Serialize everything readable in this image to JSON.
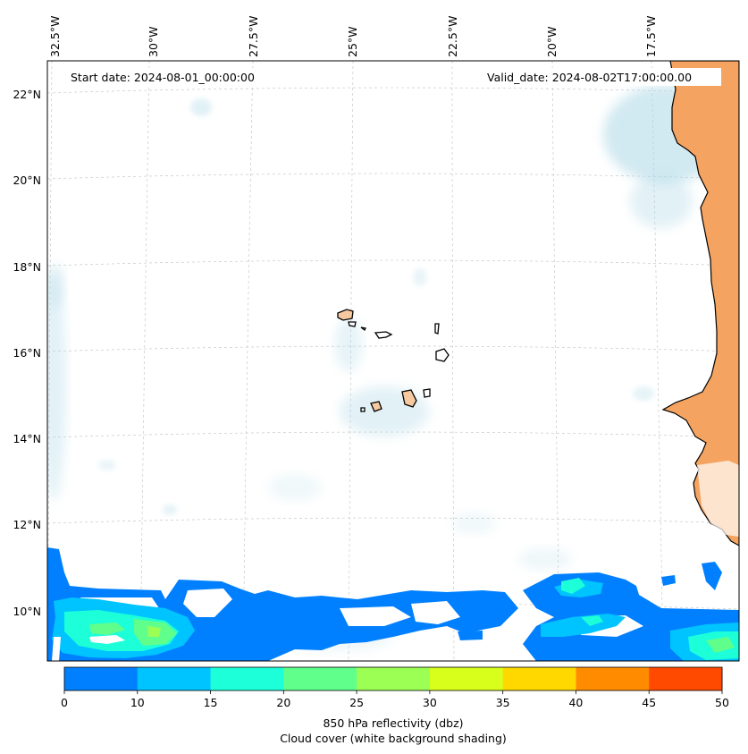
{
  "map": {
    "start_date": "Start date: 2024-08-01_00:00:00",
    "valid_date": "Valid_date: 2024-08-02T17:00:00.00",
    "lon_labels": [
      "32.5°W",
      "30°W",
      "27.5°W",
      "25°W",
      "22.5°W",
      "20°W",
      "17.5°W"
    ],
    "lat_labels": [
      "22°N",
      "20°N",
      "18°N",
      "16°N",
      "14°N",
      "12°N",
      "10°N"
    ],
    "colors": {
      "land": "#f4a460",
      "cloud": "#add8e6",
      "coast": "#000000",
      "gridline": "#b0b0b0"
    }
  },
  "colorbar": {
    "ticks": [
      "0",
      "10",
      "15",
      "20",
      "25",
      "30",
      "35",
      "40",
      "45",
      "50"
    ],
    "colors": [
      "#0080ff",
      "#00c4ff",
      "#1cffd8",
      "#60ff8c",
      "#9cff54",
      "#d8ff1c",
      "#ffd800",
      "#ff8c00",
      "#ff4a00"
    ],
    "label_line1": "850 hPa reflectivity (dbz)",
    "label_line2": "Cloud cover (white background shading)"
  }
}
